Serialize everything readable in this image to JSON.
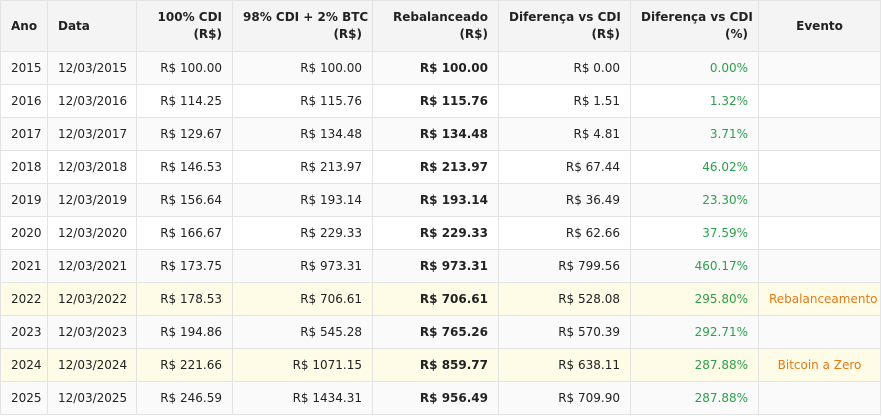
{
  "headers": [
    {
      "l1": "Ano",
      "l2": ""
    },
    {
      "l1": "Data",
      "l2": ""
    },
    {
      "l1": "100% CDI",
      "l2": "(R$)"
    },
    {
      "l1": "98% CDI + 2% BTC",
      "l2": "(R$)"
    },
    {
      "l1": "Rebalanceado",
      "l2": "(R$)"
    },
    {
      "l1": "Diferença vs CDI",
      "l2": "(R$)"
    },
    {
      "l1": "Diferença vs CDI",
      "l2": "(%)"
    },
    {
      "l1": "Evento",
      "l2": ""
    }
  ],
  "colors": {
    "positive": "#2e9e4e",
    "event": "#e07b1a",
    "highlight_row": "#fefbe6"
  },
  "rows": [
    {
      "ano": "2015",
      "data": "12/03/2015",
      "cdi": "R$ 100.00",
      "btc": "R$ 100.00",
      "rebal": "R$ 100.00",
      "diff": "R$ 0.00",
      "pct": "0.00%",
      "evento": "",
      "highlight": false
    },
    {
      "ano": "2016",
      "data": "12/03/2016",
      "cdi": "R$ 114.25",
      "btc": "R$ 115.76",
      "rebal": "R$ 115.76",
      "diff": "R$ 1.51",
      "pct": "1.32%",
      "evento": "",
      "highlight": false
    },
    {
      "ano": "2017",
      "data": "12/03/2017",
      "cdi": "R$ 129.67",
      "btc": "R$ 134.48",
      "rebal": "R$ 134.48",
      "diff": "R$ 4.81",
      "pct": "3.71%",
      "evento": "",
      "highlight": false
    },
    {
      "ano": "2018",
      "data": "12/03/2018",
      "cdi": "R$ 146.53",
      "btc": "R$ 213.97",
      "rebal": "R$ 213.97",
      "diff": "R$ 67.44",
      "pct": "46.02%",
      "evento": "",
      "highlight": false
    },
    {
      "ano": "2019",
      "data": "12/03/2019",
      "cdi": "R$ 156.64",
      "btc": "R$ 193.14",
      "rebal": "R$ 193.14",
      "diff": "R$ 36.49",
      "pct": "23.30%",
      "evento": "",
      "highlight": false
    },
    {
      "ano": "2020",
      "data": "12/03/2020",
      "cdi": "R$ 166.67",
      "btc": "R$ 229.33",
      "rebal": "R$ 229.33",
      "diff": "R$ 62.66",
      "pct": "37.59%",
      "evento": "",
      "highlight": false
    },
    {
      "ano": "2021",
      "data": "12/03/2021",
      "cdi": "R$ 173.75",
      "btc": "R$ 973.31",
      "rebal": "R$ 973.31",
      "diff": "R$ 799.56",
      "pct": "460.17%",
      "evento": "",
      "highlight": false
    },
    {
      "ano": "2022",
      "data": "12/03/2022",
      "cdi": "R$ 178.53",
      "btc": "R$ 706.61",
      "rebal": "R$ 706.61",
      "diff": "R$ 528.08",
      "pct": "295.80%",
      "evento": "Rebalanceamento",
      "highlight": true
    },
    {
      "ano": "2023",
      "data": "12/03/2023",
      "cdi": "R$ 194.86",
      "btc": "R$ 545.28",
      "rebal": "R$ 765.26",
      "diff": "R$ 570.39",
      "pct": "292.71%",
      "evento": "",
      "highlight": false
    },
    {
      "ano": "2024",
      "data": "12/03/2024",
      "cdi": "R$ 221.66",
      "btc": "R$ 1071.15",
      "rebal": "R$ 859.77",
      "diff": "R$ 638.11",
      "pct": "287.88%",
      "evento": "Bitcoin a Zero",
      "highlight": true
    },
    {
      "ano": "2025",
      "data": "12/03/2025",
      "cdi": "R$ 246.59",
      "btc": "R$ 1434.31",
      "rebal": "R$ 956.49",
      "diff": "R$ 709.90",
      "pct": "287.88%",
      "evento": "",
      "highlight": false
    }
  ]
}
